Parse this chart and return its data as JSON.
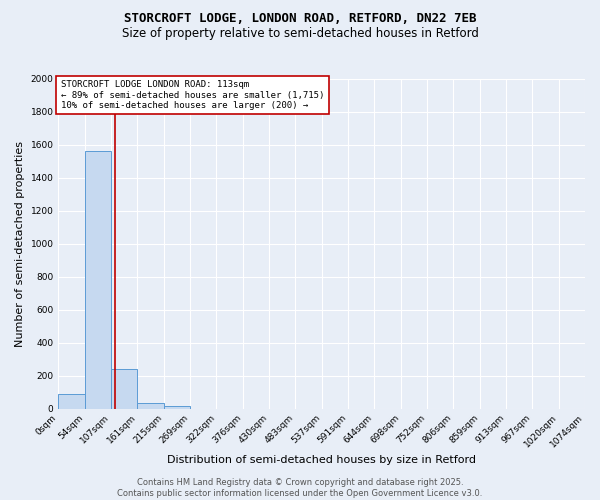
{
  "title1": "STORCROFT LODGE, LONDON ROAD, RETFORD, DN22 7EB",
  "title2": "Size of property relative to semi-detached houses in Retford",
  "xlabel": "Distribution of semi-detached houses by size in Retford",
  "ylabel": "Number of semi-detached properties",
  "bin_labels": [
    "0sqm",
    "54sqm",
    "107sqm",
    "161sqm",
    "215sqm",
    "269sqm",
    "322sqm",
    "376sqm",
    "430sqm",
    "483sqm",
    "537sqm",
    "591sqm",
    "644sqm",
    "698sqm",
    "752sqm",
    "806sqm",
    "859sqm",
    "913sqm",
    "967sqm",
    "1020sqm",
    "1074sqm"
  ],
  "bar_counts": [
    90,
    1560,
    240,
    35,
    15,
    0,
    0,
    0,
    0,
    0,
    0,
    0,
    0,
    0,
    0,
    0,
    0,
    0,
    0,
    0
  ],
  "num_bins": 20,
  "bin_width": 53,
  "bar_color": "#c6d9f0",
  "bar_edge_color": "#5b9bd5",
  "property_size": 113,
  "vline_color": "#c00000",
  "annotation_text": "STORCROFT LODGE LONDON ROAD: 113sqm\n← 89% of semi-detached houses are smaller (1,715)\n10% of semi-detached houses are larger (200) →",
  "annotation_box_color": "#ffffff",
  "annotation_box_edge": "#c00000",
  "ylim": [
    0,
    2000
  ],
  "yticks": [
    0,
    200,
    400,
    600,
    800,
    1000,
    1200,
    1400,
    1600,
    1800,
    2000
  ],
  "footer": "Contains HM Land Registry data © Crown copyright and database right 2025.\nContains public sector information licensed under the Open Government Licence v3.0.",
  "bg_color": "#e8eef7",
  "plot_bg_color": "#e8eef7",
  "grid_color": "#ffffff",
  "title_fontsize": 9,
  "subtitle_fontsize": 8.5,
  "axis_label_fontsize": 8,
  "tick_fontsize": 6.5,
  "annotation_fontsize": 6.5,
  "footer_fontsize": 6
}
